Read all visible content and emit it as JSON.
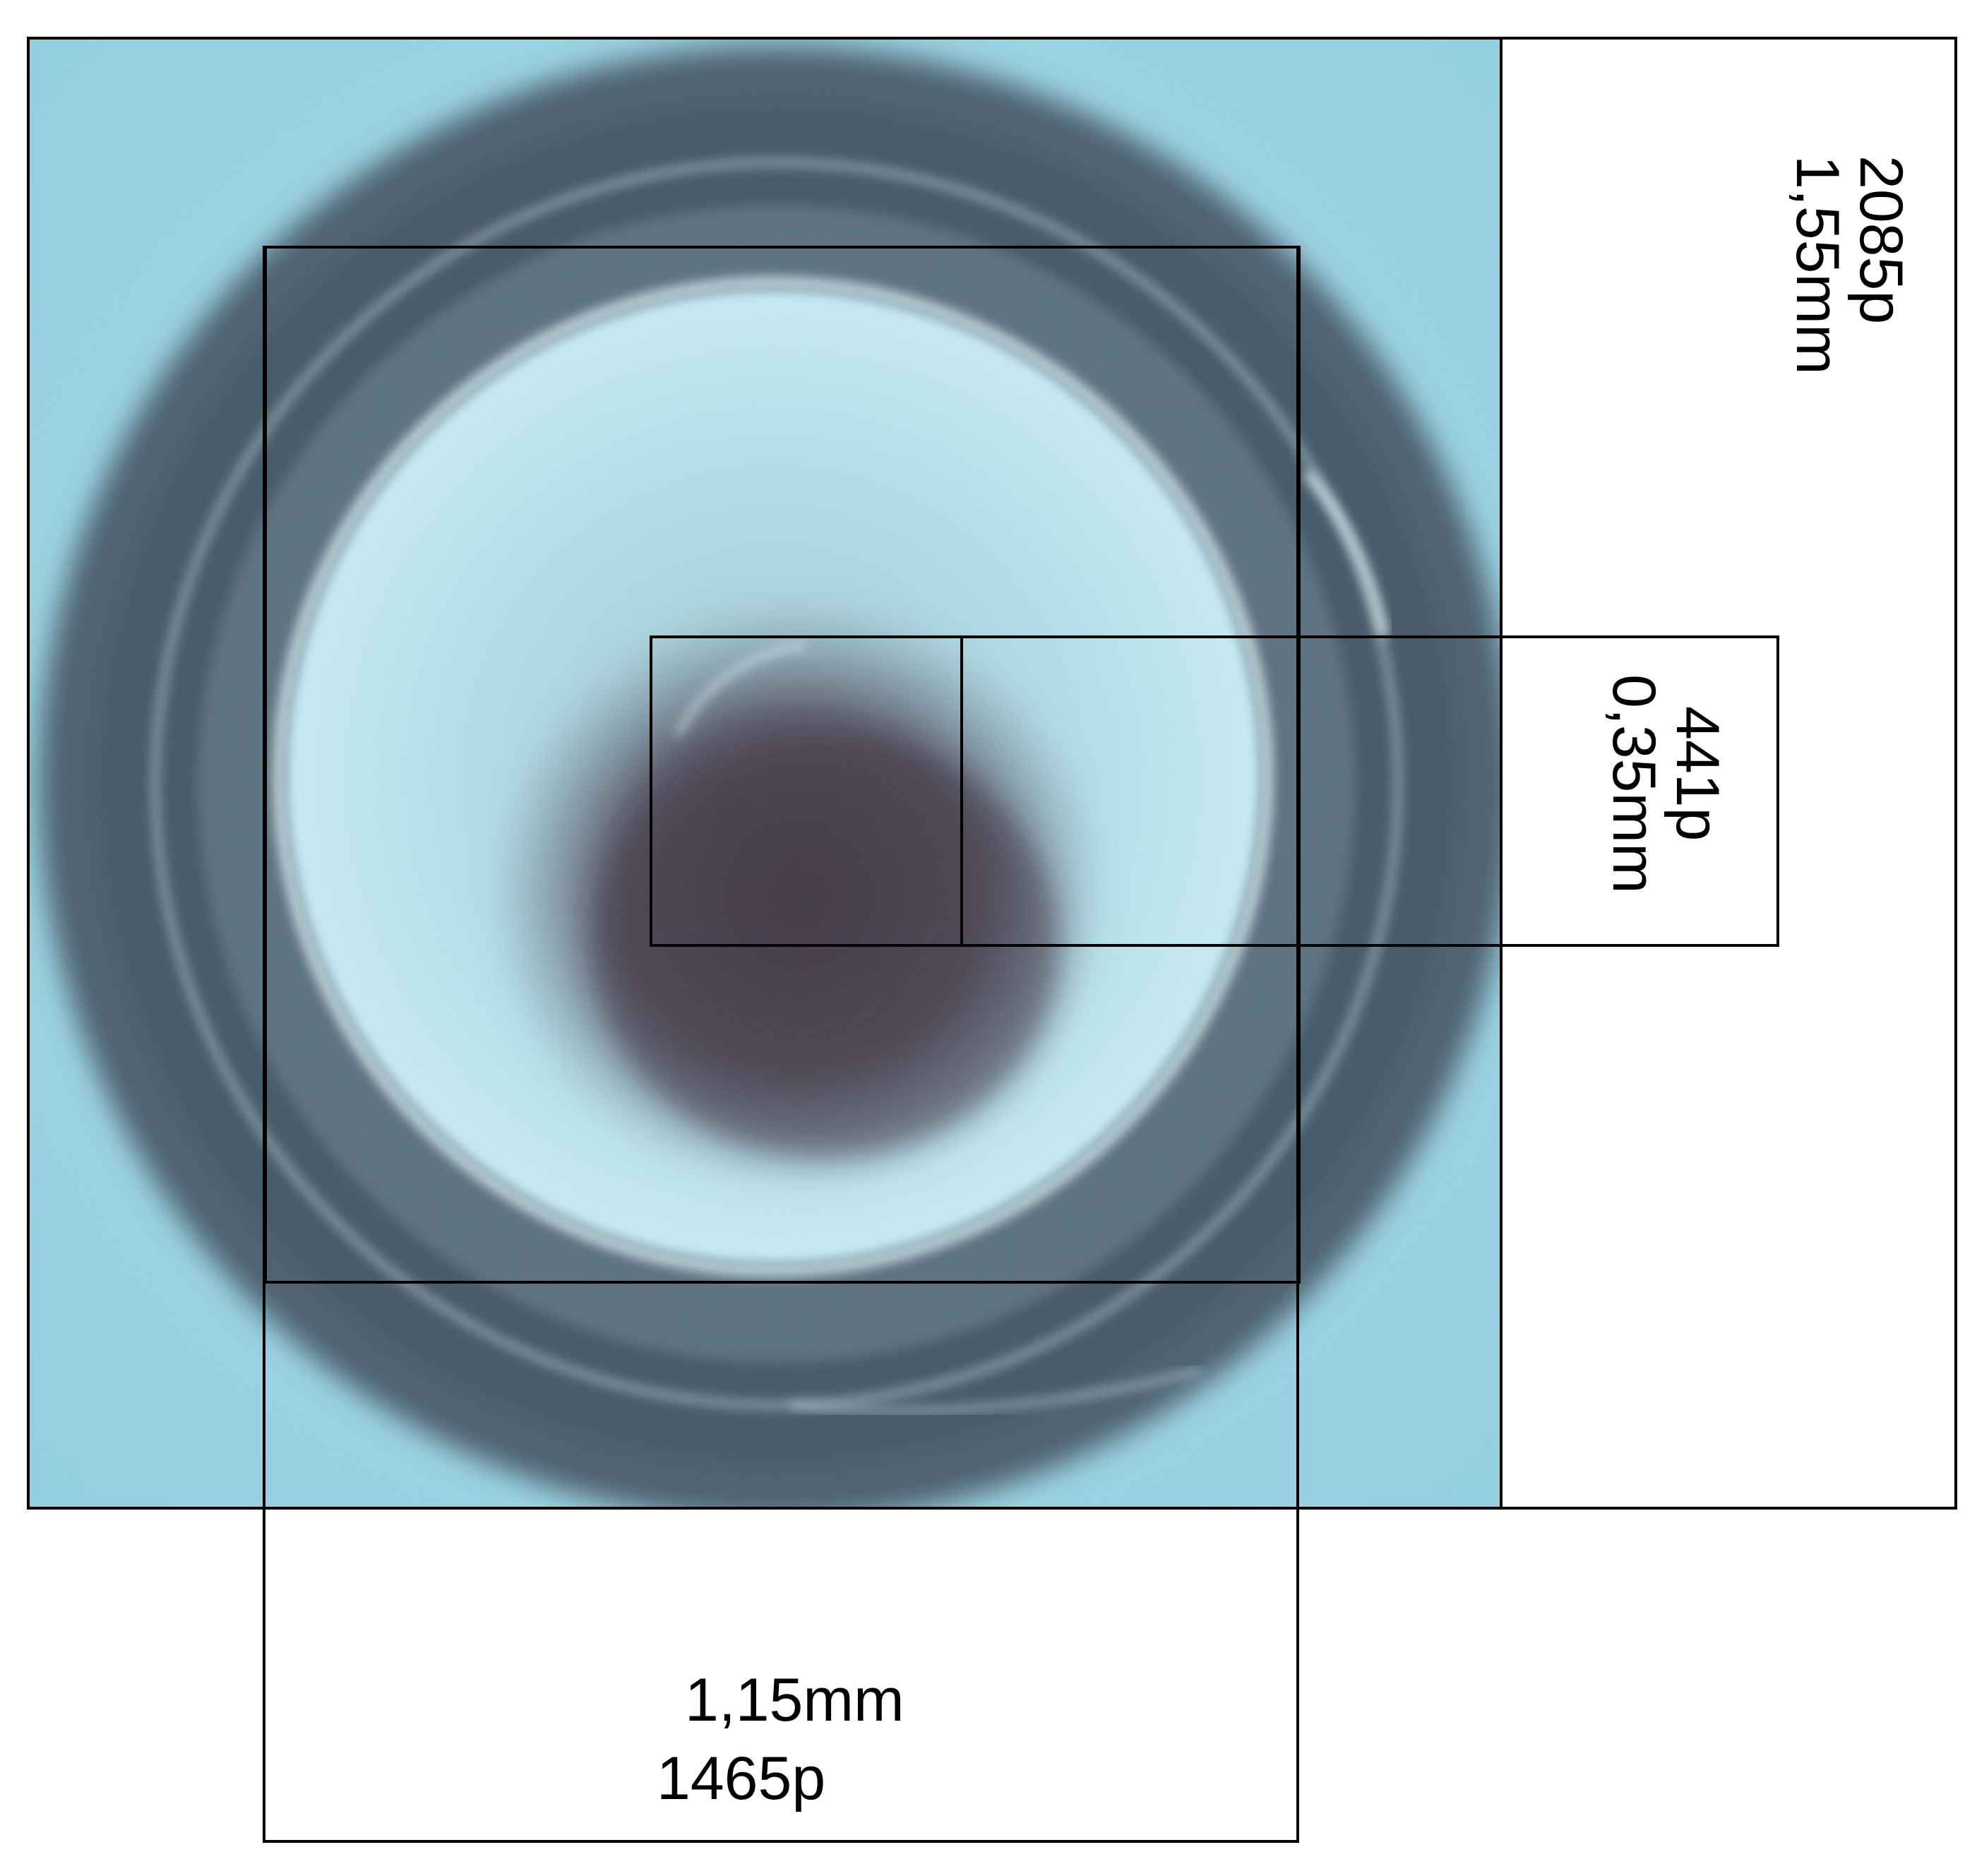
{
  "colors": {
    "background": "#ffffff",
    "photo_base": "#8fd0e2",
    "photo_light": "#b8e6f2",
    "ring_dark": "#3b4d5c",
    "core_dark": "#3c3140",
    "frame": "#000000"
  },
  "photo": {
    "subject": "circular-lens-or-seal-under-magnification-icon"
  },
  "annotations": {
    "height_pixels": "2085p",
    "height_mm": "1,55mm",
    "inner_pixels": "441p",
    "inner_mm": "0,35mm",
    "width_mm": "1,15mm",
    "width_pixels": "1465p"
  }
}
